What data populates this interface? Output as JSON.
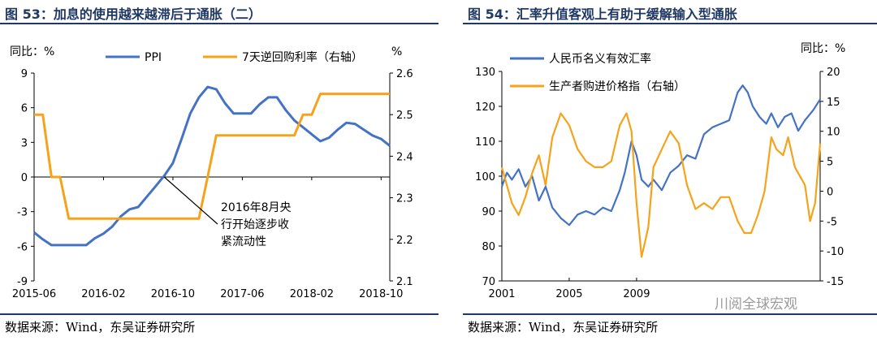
{
  "left": {
    "figure_title": "图 53：加息的使用越来越滞后于通胀（二）",
    "source": "数据来源：Wind，东吴证券研究所",
    "chart_data": {
      "type": "line",
      "ylabel_left": "同比：%",
      "ylabel_right": "%",
      "x_ticks": [
        "2015-06",
        "2016-02",
        "2016-10",
        "2017-06",
        "2018-02",
        "2018-10"
      ],
      "ylim_left": [
        -9,
        9
      ],
      "yticks_left": [
        9,
        6,
        3,
        0,
        -3,
        -6,
        -9
      ],
      "ylim_right": [
        2.1,
        2.6
      ],
      "yticks_right": [
        2.6,
        2.5,
        2.4,
        2.3,
        2.2,
        2.1
      ],
      "legend_position": "top",
      "series": [
        {
          "name": "PPI",
          "axis": "left",
          "color": "#4472c4",
          "x": [
            "2015-06",
            "2015-07",
            "2015-08",
            "2015-09",
            "2015-10",
            "2015-11",
            "2015-12",
            "2016-01",
            "2016-02",
            "2016-03",
            "2016-04",
            "2016-05",
            "2016-06",
            "2016-07",
            "2016-08",
            "2016-09",
            "2016-10",
            "2016-11",
            "2016-12",
            "2017-01",
            "2017-02",
            "2017-03",
            "2017-04",
            "2017-05",
            "2017-06",
            "2017-07",
            "2017-08",
            "2017-09",
            "2017-10",
            "2017-11",
            "2017-12",
            "2018-01",
            "2018-02",
            "2018-03",
            "2018-04",
            "2018-05",
            "2018-06",
            "2018-07",
            "2018-08",
            "2018-09",
            "2018-10",
            "2018-11"
          ],
          "values": [
            -4.8,
            -5.4,
            -5.9,
            -5.9,
            -5.9,
            -5.9,
            -5.9,
            -5.3,
            -4.9,
            -4.3,
            -3.4,
            -2.8,
            -2.6,
            -1.7,
            -0.8,
            0.1,
            1.2,
            3.3,
            5.5,
            6.9,
            7.8,
            7.6,
            6.4,
            5.5,
            5.5,
            5.5,
            6.3,
            6.9,
            6.9,
            5.8,
            4.9,
            4.3,
            3.7,
            3.1,
            3.4,
            4.1,
            4.7,
            4.6,
            4.1,
            3.6,
            3.3,
            2.7
          ]
        },
        {
          "name": "7天逆回购利率（右轴）",
          "axis": "right",
          "color": "#f5a31a",
          "x": [
            "2015-06",
            "2015-07",
            "2015-08",
            "2015-09",
            "2015-10",
            "2015-11",
            "2016-10",
            "2016-11",
            "2017-01",
            "2017-02",
            "2017-03",
            "2017-12",
            "2018-01",
            "2018-02",
            "2018-03",
            "2018-11"
          ],
          "values": [
            2.5,
            2.5,
            2.35,
            2.35,
            2.25,
            2.25,
            2.25,
            2.25,
            2.25,
            2.35,
            2.45,
            2.45,
            2.5,
            2.5,
            2.55,
            2.55
          ]
        }
      ],
      "annotation": {
        "lines": [
          "2016年8月央",
          "行开始逐步收",
          "紧流动性"
        ],
        "x": "2016-09",
        "y": 0
      }
    }
  },
  "right": {
    "figure_title": "图 54：汇率升值客观上有助于缓解输入型通胀",
    "source": "数据来源：Wind，东吴证券研究所",
    "watermark": "川阅全球宏观",
    "chart_data": {
      "type": "line",
      "ylabel_right": "同比：%",
      "x_ticks": [
        "2001",
        "2005",
        "2009"
      ],
      "x_range": [
        2001,
        2019.9
      ],
      "ylim_left": [
        70,
        130
      ],
      "yticks_left": [
        130,
        120,
        110,
        100,
        90,
        80,
        70
      ],
      "ylim_right": [
        -15,
        20
      ],
      "yticks_right": [
        20,
        15,
        10,
        5,
        0,
        -5,
        -10,
        -15
      ],
      "legend_position": "top-left",
      "series": [
        {
          "name": "人民币名义有效汇率",
          "axis": "left",
          "color": "#4472c4",
          "x": [
            2001,
            2001.3,
            2001.6,
            2002,
            2002.4,
            2002.8,
            2003.2,
            2003.6,
            2004,
            2004.5,
            2005,
            2005.5,
            2006,
            2006.5,
            2007,
            2007.5,
            2008,
            2008.3,
            2008.7,
            2009,
            2009.3,
            2009.7,
            2010,
            2010.5,
            2011,
            2011.5,
            2012,
            2012.5,
            2013,
            2013.5,
            2014,
            2014.5,
            2015,
            2015.3,
            2015.6,
            2015.9,
            2016.3,
            2016.7,
            2017,
            2017.4,
            2017.8,
            2018.2,
            2018.6,
            2019,
            2019.5,
            2019.9
          ],
          "values": [
            97,
            101,
            99,
            102,
            97,
            100,
            93,
            97,
            91,
            88,
            86,
            89,
            90,
            89,
            91,
            90,
            96,
            101,
            110,
            106,
            99,
            97,
            99,
            96,
            101,
            103,
            106,
            105,
            112,
            114,
            115,
            116,
            124,
            126,
            124,
            120,
            117,
            115,
            118,
            114,
            117,
            118,
            113,
            116,
            119,
            122
          ]
        },
        {
          "name": "生产者购进价格指（右轴）",
          "axis": "right",
          "color": "#f5a31a",
          "x": [
            2001,
            2001.3,
            2001.6,
            2002,
            2002.4,
            2002.8,
            2003.2,
            2003.6,
            2004,
            2004.5,
            2005,
            2005.5,
            2006,
            2006.5,
            2007,
            2007.5,
            2008,
            2008.4,
            2008.7,
            2009,
            2009.3,
            2009.7,
            2010,
            2010.5,
            2011,
            2011.5,
            2012,
            2012.5,
            2013,
            2013.5,
            2014,
            2014.5,
            2015,
            2015.4,
            2015.8,
            2016.2,
            2016.6,
            2017,
            2017.3,
            2017.7,
            2018,
            2018.4,
            2018.8,
            2019,
            2019.3,
            2019.6,
            2019.9
          ],
          "values": [
            4,
            1,
            -2,
            -4,
            -1,
            3,
            6,
            1,
            9,
            13,
            11,
            7,
            5,
            4,
            4,
            5,
            11,
            13,
            10,
            -2,
            -11,
            -6,
            4,
            7,
            10,
            8,
            1,
            -3,
            -2,
            -3,
            -1,
            -1,
            -5,
            -7,
            -7,
            -4,
            0,
            9,
            7,
            6,
            9,
            4,
            2,
            1,
            -5,
            -2,
            8
          ]
        }
      ]
    }
  }
}
